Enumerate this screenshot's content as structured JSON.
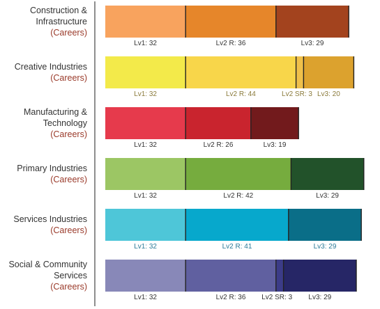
{
  "colors": {
    "axis": "#444444",
    "divider": "#222222",
    "category_text": "#333333",
    "careers_text": "#9a3a2a"
  },
  "chart_data": {
    "type": "bar",
    "orientation": "horizontal",
    "stacked": true,
    "xlim": [
      0,
      105
    ],
    "grid": false,
    "legend": "none",
    "categories": [
      {
        "name_lines": [
          "Construction &",
          "Infrastructure"
        ],
        "sub": "(Careers)",
        "label_color": "#333333",
        "segments": [
          {
            "label": "Lv1: 32",
            "value": 32,
            "color": "#f8a35e"
          },
          {
            "label": "Lv2 R: 36",
            "value": 36,
            "color": "#e6862a"
          },
          {
            "label": "Lv3: 29",
            "value": 29,
            "color": "#a3431e"
          }
        ]
      },
      {
        "name_lines": [
          "Creative Industries"
        ],
        "sub": "(Careers)",
        "label_color": "#8a7a3a",
        "segments": [
          {
            "label": "Lv1: 32",
            "value": 32,
            "color": "#f3ea4a"
          },
          {
            "label": "Lv2 R: 44",
            "value": 44,
            "color": "#f8d64a"
          },
          {
            "label": "Lv2 SR: 3",
            "value": 3,
            "color": "#efc04a"
          },
          {
            "label": "Lv3: 20",
            "value": 20,
            "color": "#dca22e"
          }
        ]
      },
      {
        "name_lines": [
          "Manufacturing &",
          "Technology"
        ],
        "sub": "(Careers)",
        "label_color": "#333333",
        "segments": [
          {
            "label": "Lv1: 32",
            "value": 32,
            "color": "#e63a4c"
          },
          {
            "label": "Lv2 R: 26",
            "value": 26,
            "color": "#c9242e"
          },
          {
            "label": "Lv3: 19",
            "value": 19,
            "color": "#721a1c"
          }
        ]
      },
      {
        "name_lines": [
          "Primary Industries"
        ],
        "sub": "(Careers)",
        "label_color": "#333333",
        "segments": [
          {
            "label": "Lv1: 32",
            "value": 32,
            "color": "#9cc664"
          },
          {
            "label": "Lv2 R: 42",
            "value": 42,
            "color": "#76ac3e"
          },
          {
            "label": "Lv3: 29",
            "value": 29,
            "color": "#22522a"
          }
        ]
      },
      {
        "name_lines": [
          "Services Industries"
        ],
        "sub": "(Careers)",
        "label_color": "#2a7a98",
        "segments": [
          {
            "label": "Lv1: 32",
            "value": 32,
            "color": "#4ec6d8"
          },
          {
            "label": "Lv2 R: 41",
            "value": 41,
            "color": "#07a8cc"
          },
          {
            "label": "Lv3: 29",
            "value": 29,
            "color": "#0a6e88"
          }
        ]
      },
      {
        "name_lines": [
          "Social & Community",
          "Services"
        ],
        "sub": "(Careers)",
        "label_color": "#333333",
        "segments": [
          {
            "label": "Lv1: 32",
            "value": 32,
            "color": "#8888b8"
          },
          {
            "label": "Lv2 R: 36",
            "value": 36,
            "color": "#6060a0"
          },
          {
            "label": "Lv2 SR: 3",
            "value": 3,
            "color": "#3c3c88"
          },
          {
            "label": "Lv3: 29",
            "value": 29,
            "color": "#262666"
          }
        ]
      }
    ]
  }
}
